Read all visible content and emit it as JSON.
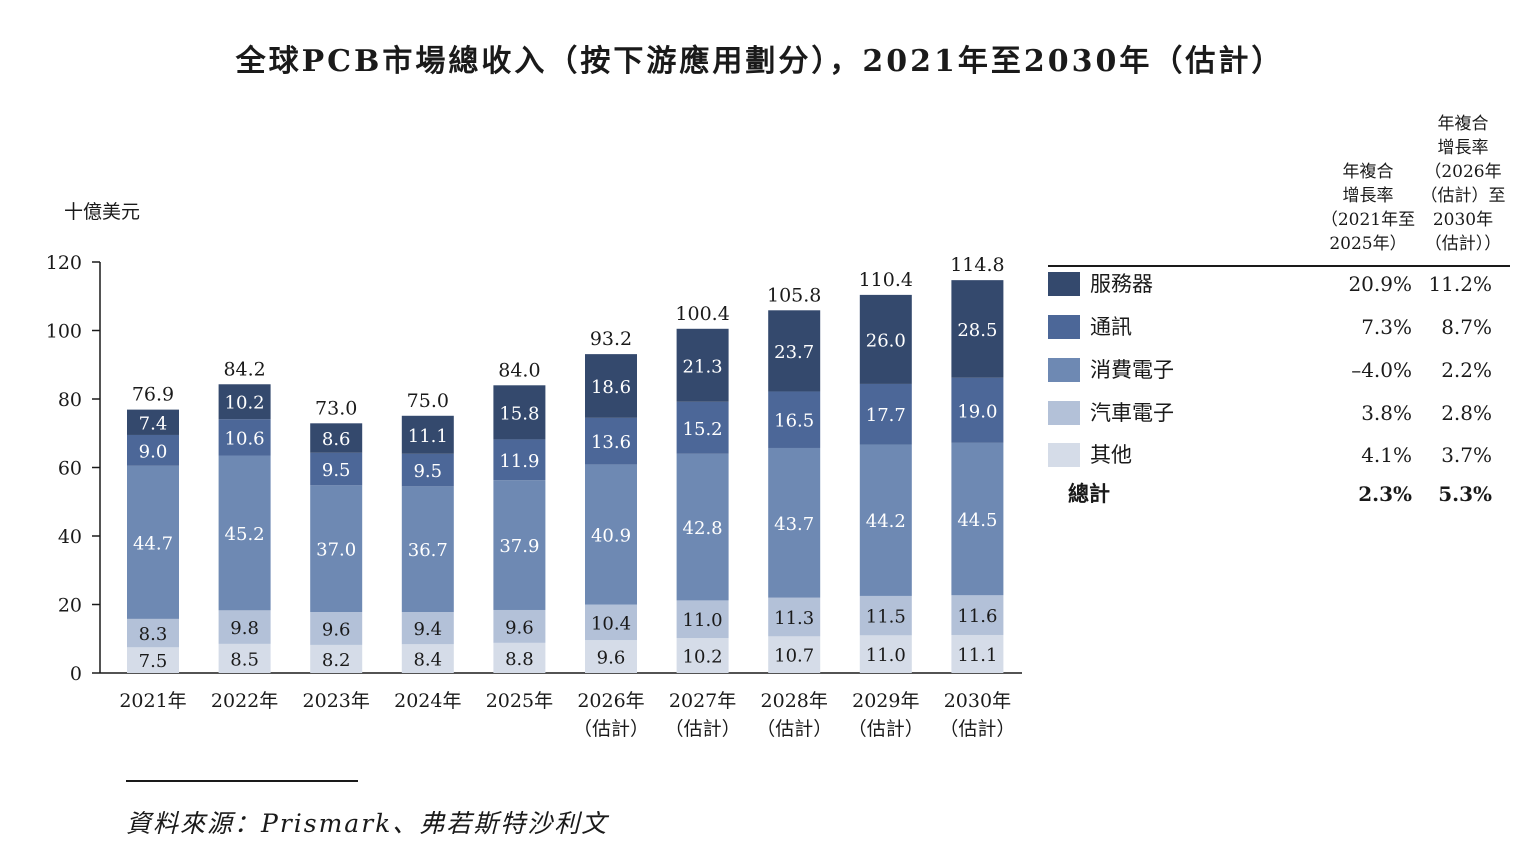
{
  "title": "全球PCB市場總收入（按下游應用劃分），2021年至2030年（估計）",
  "source": "資料來源：Prismark、弗若斯特沙利文",
  "chart_data": {
    "type": "bar",
    "stacked": true,
    "ylabel": "十億美元",
    "ylim": [
      0,
      120
    ],
    "yticks": [
      0,
      20,
      40,
      60,
      80,
      100,
      120
    ],
    "categories": [
      [
        "2021年"
      ],
      [
        "2022年"
      ],
      [
        "2023年"
      ],
      [
        "2024年"
      ],
      [
        "2025年"
      ],
      [
        "2026年",
        "（估計）"
      ],
      [
        "2027年",
        "（估計）"
      ],
      [
        "2028年",
        "（估計）"
      ],
      [
        "2029年",
        "（估計）"
      ],
      [
        "2030年",
        "（估計）"
      ]
    ],
    "series": [
      {
        "name": "其他",
        "color": "#d5dce8",
        "values": [
          7.5,
          8.5,
          8.2,
          8.4,
          8.8,
          9.6,
          10.2,
          10.7,
          11.0,
          11.1
        ]
      },
      {
        "name": "汽車電子",
        "color": "#b3c1d8",
        "values": [
          8.3,
          9.8,
          9.6,
          9.4,
          9.6,
          10.4,
          11.0,
          11.3,
          11.5,
          11.6
        ]
      },
      {
        "name": "消費電子",
        "color": "#6e89b3",
        "values": [
          44.7,
          45.2,
          37.0,
          36.7,
          37.9,
          40.9,
          42.8,
          43.7,
          44.2,
          44.5
        ]
      },
      {
        "name": "通訊",
        "color": "#4c6798",
        "values": [
          9.0,
          10.6,
          9.5,
          9.5,
          11.9,
          13.6,
          15.2,
          16.5,
          17.7,
          19.0
        ]
      },
      {
        "name": "服務器",
        "color": "#34496d",
        "values": [
          7.4,
          10.2,
          8.6,
          11.1,
          15.8,
          18.6,
          21.3,
          23.7,
          26.0,
          28.5
        ]
      }
    ],
    "totals": [
      "76.9",
      "84.2",
      "73.0",
      "75.0",
      "84.0",
      "93.2",
      "100.4",
      "105.8",
      "110.4",
      "114.8"
    ],
    "legend": "right"
  },
  "legend_table": {
    "header_1": [
      "年複合",
      "增長率",
      "（2021年至",
      "2025年）"
    ],
    "header_2": [
      "年複合",
      "增長率",
      "（2026年",
      "（估計）至",
      "2030年",
      "（估計））"
    ],
    "rows": [
      {
        "name": "服務器",
        "color": "#34496d",
        "cagr_1": "20.9%",
        "cagr_2": "11.2%"
      },
      {
        "name": "通訊",
        "color": "#4c6798",
        "cagr_1": "7.3%",
        "cagr_2": "8.7%"
      },
      {
        "name": "消費電子",
        "color": "#6e89b3",
        "cagr_1": "–4.0%",
        "cagr_2": "2.2%"
      },
      {
        "name": "汽車電子",
        "color": "#b3c1d8",
        "cagr_1": "3.8%",
        "cagr_2": "2.8%"
      },
      {
        "name": "其他",
        "color": "#d5dce8",
        "cagr_1": "4.1%",
        "cagr_2": "3.7%"
      }
    ],
    "total": {
      "name": "總計",
      "cagr_1": "2.3%",
      "cagr_2": "5.3%"
    }
  }
}
